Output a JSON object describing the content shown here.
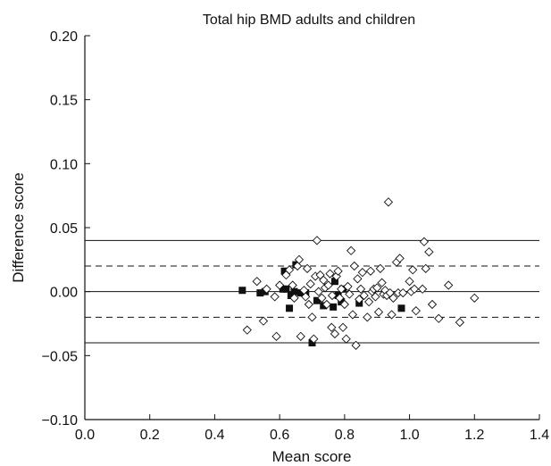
{
  "chart_data": {
    "type": "scatter",
    "title": "Total hip BMD adults and children",
    "xlabel": "Mean score",
    "ylabel": "Difference score",
    "xlim": [
      0.0,
      1.4
    ],
    "ylim": [
      -0.1,
      0.2
    ],
    "x_ticks": [
      "0.0",
      "0.2",
      "0.4",
      "0.6",
      "0.8",
      "1.0",
      "1.2",
      "1.4"
    ],
    "y_ticks": [
      "−0.10",
      "−0.05",
      "0.00",
      "0.05",
      "0.10",
      "0.15",
      "0.20"
    ],
    "x_tick_values": [
      0.0,
      0.2,
      0.4,
      0.6,
      0.8,
      1.0,
      1.2,
      1.4
    ],
    "y_tick_values": [
      -0.1,
      -0.05,
      0.0,
      0.05,
      0.1,
      0.15,
      0.2
    ],
    "grid": false,
    "reference_lines": [
      {
        "y": 0.04,
        "style": "solid"
      },
      {
        "y": 0.02,
        "style": "dashed"
      },
      {
        "y": 0.0,
        "style": "solid"
      },
      {
        "y": -0.02,
        "style": "dashed"
      },
      {
        "y": -0.04,
        "style": "solid"
      }
    ],
    "series": [
      {
        "marker": "square-filled",
        "points": [
          [
            0.485,
            0.001
          ],
          [
            0.54,
            -0.001
          ],
          [
            0.555,
            0.0
          ],
          [
            0.61,
            0.002
          ],
          [
            0.615,
            0.016
          ],
          [
            0.62,
            0.002
          ],
          [
            0.63,
            -0.013
          ],
          [
            0.635,
            -0.003
          ],
          [
            0.645,
            0.0
          ],
          [
            0.65,
            0.021
          ],
          [
            0.665,
            -0.001
          ],
          [
            0.68,
            -0.001
          ],
          [
            0.7,
            -0.04
          ],
          [
            0.715,
            -0.007
          ],
          [
            0.735,
            -0.011
          ],
          [
            0.765,
            -0.012
          ],
          [
            0.77,
            0.008
          ],
          [
            0.78,
            -0.003
          ],
          [
            0.79,
            -0.008
          ],
          [
            0.795,
            0.002
          ],
          [
            0.845,
            -0.009
          ],
          [
            0.975,
            -0.013
          ]
        ]
      },
      {
        "marker": "diamond-open",
        "points": [
          [
            0.5,
            -0.03
          ],
          [
            0.53,
            0.008
          ],
          [
            0.55,
            -0.023
          ],
          [
            0.56,
            0.002
          ],
          [
            0.585,
            -0.004
          ],
          [
            0.59,
            -0.035
          ],
          [
            0.6,
            0.005
          ],
          [
            0.62,
            0.013
          ],
          [
            0.63,
            0.017
          ],
          [
            0.64,
            0.005
          ],
          [
            0.645,
            -0.005
          ],
          [
            0.655,
            0.02
          ],
          [
            0.66,
            0.025
          ],
          [
            0.665,
            -0.035
          ],
          [
            0.675,
            0.001
          ],
          [
            0.68,
            -0.004
          ],
          [
            0.685,
            0.018
          ],
          [
            0.69,
            -0.01
          ],
          [
            0.695,
            0.006
          ],
          [
            0.7,
            -0.02
          ],
          [
            0.705,
            -0.037
          ],
          [
            0.71,
            0.012
          ],
          [
            0.715,
            0.04
          ],
          [
            0.72,
            0.0
          ],
          [
            0.725,
            0.013
          ],
          [
            0.73,
            -0.005
          ],
          [
            0.735,
            0.009
          ],
          [
            0.74,
            0.003
          ],
          [
            0.745,
            -0.01
          ],
          [
            0.75,
            0.005
          ],
          [
            0.755,
            0.014
          ],
          [
            0.76,
            -0.028
          ],
          [
            0.762,
            -0.003
          ],
          [
            0.77,
            -0.033
          ],
          [
            0.775,
            0.012
          ],
          [
            0.78,
            0.016
          ],
          [
            0.785,
            -0.005
          ],
          [
            0.79,
            0.002
          ],
          [
            0.795,
            -0.028
          ],
          [
            0.8,
            -0.01
          ],
          [
            0.805,
            -0.037
          ],
          [
            0.81,
            0.004
          ],
          [
            0.815,
            -0.002
          ],
          [
            0.82,
            0.032
          ],
          [
            0.825,
            -0.018
          ],
          [
            0.83,
            0.02
          ],
          [
            0.835,
            -0.042
          ],
          [
            0.84,
            0.01
          ],
          [
            0.845,
            -0.006
          ],
          [
            0.85,
            0.002
          ],
          [
            0.855,
            0.015
          ],
          [
            0.86,
            -0.003
          ],
          [
            0.87,
            -0.02
          ],
          [
            0.875,
            -0.008
          ],
          [
            0.88,
            0.016
          ],
          [
            0.885,
            0.0
          ],
          [
            0.89,
            0.002
          ],
          [
            0.895,
            -0.004
          ],
          [
            0.9,
            0.003
          ],
          [
            0.905,
            -0.016
          ],
          [
            0.91,
            0.018
          ],
          [
            0.915,
            0.007
          ],
          [
            0.92,
            -0.002
          ],
          [
            0.925,
            0.001
          ],
          [
            0.93,
            -0.003
          ],
          [
            0.935,
            0.07
          ],
          [
            0.94,
            -0.001
          ],
          [
            0.945,
            -0.018
          ],
          [
            0.95,
            -0.005
          ],
          [
            0.96,
            0.023
          ],
          [
            0.965,
            -0.001
          ],
          [
            0.97,
            0.026
          ],
          [
            0.98,
            -0.001
          ],
          [
            1.0,
            0.008
          ],
          [
            1.005,
            0.0
          ],
          [
            1.01,
            0.017
          ],
          [
            1.015,
            0.002
          ],
          [
            1.02,
            -0.015
          ],
          [
            1.04,
            0.002
          ],
          [
            1.045,
            0.039
          ],
          [
            1.05,
            0.018
          ],
          [
            1.06,
            0.031
          ],
          [
            1.07,
            -0.01
          ],
          [
            1.09,
            -0.021
          ],
          [
            1.12,
            0.005
          ],
          [
            1.155,
            -0.024
          ],
          [
            1.2,
            -0.005
          ]
        ]
      }
    ]
  }
}
